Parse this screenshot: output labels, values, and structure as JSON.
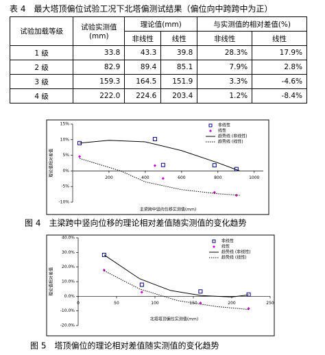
{
  "table": {
    "caption": "表 4　最大塔顶偏位试验工况下北塔偏测试结果（偏位向中跨跨中为正）",
    "header": [
      "试验加载等级",
      "试验实测值(mm)",
      "理论值(mm)",
      "与实测值的相对差值(%)"
    ],
    "subheader": [
      "非线性",
      "线性",
      "非线性",
      "线性"
    ],
    "rows": [
      [
        "1 级",
        "33.8",
        "43.3",
        "39.8",
        "28.3%",
        "17.9%"
      ],
      [
        "2 级",
        "82.9",
        "89.4",
        "85.1",
        "7.9%",
        "2.8%"
      ],
      [
        "3 级",
        "159.3",
        "164.5",
        "151.9",
        "3.3%",
        "-4.6%"
      ],
      [
        "4 级",
        "222.0",
        "224.6",
        "203.4",
        "1.2%",
        "-8.4%"
      ]
    ]
  },
  "chart_data": [
    {
      "type": "scatter",
      "caption": "图 4　主梁跨中竖向位移的理论相对差值随实测值的变化趋势",
      "xlabel": "主梁跨中竖向位移实测值(mm)",
      "ylabel": "理论值相对差值",
      "xlim": [
        0,
        1050
      ],
      "ylim": [
        -10,
        15
      ],
      "xticks": [
        200,
        400,
        600,
        800,
        1000
      ],
      "yticks": [
        {
          "value": 15,
          "label": "15%"
        },
        {
          "value": 10,
          "label": "10%"
        },
        {
          "value": 5,
          "label": "5%"
        },
        {
          "value": 0,
          "label": "0%"
        },
        {
          "value": -5,
          "label": "-5%"
        },
        {
          "value": -10,
          "label": "-10%"
        }
      ],
      "series": [
        {
          "name": "非线性",
          "color": "#000080",
          "marker": "square",
          "x": [
            38,
            453,
            498,
            781,
            902
          ],
          "values": [
            8.9,
            10.2,
            1.9,
            1.8,
            0.6
          ]
        },
        {
          "name": "线性",
          "color": "#cc00cc",
          "marker": "diamond",
          "x": [
            38,
            453,
            498,
            781,
            902
          ],
          "values": [
            4.6,
            1.7,
            -2.4,
            -6.9,
            -7.8
          ]
        },
        {
          "name": "趋势线 (非线性)",
          "color": "#000000",
          "line": "solid",
          "x": [
            38,
            200,
            400,
            600,
            800,
            920
          ],
          "values": [
            8.9,
            9.8,
            9.3,
            6.5,
            2.6,
            0
          ]
        },
        {
          "name": "趋势线 (线性)",
          "color": "#000000",
          "line": "dotted",
          "x": [
            38,
            264,
            400,
            600,
            800,
            920
          ],
          "values": [
            4,
            0,
            -3.5,
            -6,
            -7.3,
            -7.8
          ]
        }
      ]
    },
    {
      "type": "scatter",
      "caption": "图 5　塔顶偏位的理论相对差值随实测值的变化趋势",
      "xlabel": "北塔塔顶偏位实测值(mm)",
      "ylabel": "理论值相对差值",
      "xlim": [
        0,
        250
      ],
      "ylim": [
        -20,
        40
      ],
      "xticks": [
        0,
        50,
        100,
        150,
        200,
        250
      ],
      "yticks": [
        {
          "value": 40,
          "label": "40.0%"
        },
        {
          "value": 30,
          "label": "30.0%"
        },
        {
          "value": 20,
          "label": "20.0%"
        },
        {
          "value": 10,
          "label": "10.0%"
        },
        {
          "value": 0,
          "label": "0.0%"
        },
        {
          "value": -10,
          "label": "-10.0%"
        },
        {
          "value": -20,
          "label": "-20.0%"
        }
      ],
      "series": [
        {
          "name": "非线性",
          "color": "#000080",
          "marker": "square",
          "x": [
            33.8,
            82.9,
            159.3,
            222.0
          ],
          "values": [
            28.3,
            7.9,
            3.3,
            1.2
          ]
        },
        {
          "name": "线性",
          "color": "#cc00cc",
          "marker": "diamond",
          "x": [
            33.8,
            82.9,
            159.3,
            222.0
          ],
          "values": [
            17.9,
            2.8,
            -4.6,
            -8.4
          ]
        },
        {
          "name": "趋势线 (非线性)",
          "color": "#000000",
          "line": "solid",
          "x": [
            33.8,
            80,
            120,
            160,
            200,
            222
          ],
          "values": [
            28.3,
            12,
            4,
            0.5,
            -0.5,
            1
          ]
        },
        {
          "name": "趋势线 (线性)",
          "color": "#000000",
          "line": "dotted",
          "x": [
            33.8,
            80,
            130,
            180,
            222
          ],
          "values": [
            17.5,
            5,
            -3,
            -7,
            -9
          ]
        }
      ]
    }
  ]
}
